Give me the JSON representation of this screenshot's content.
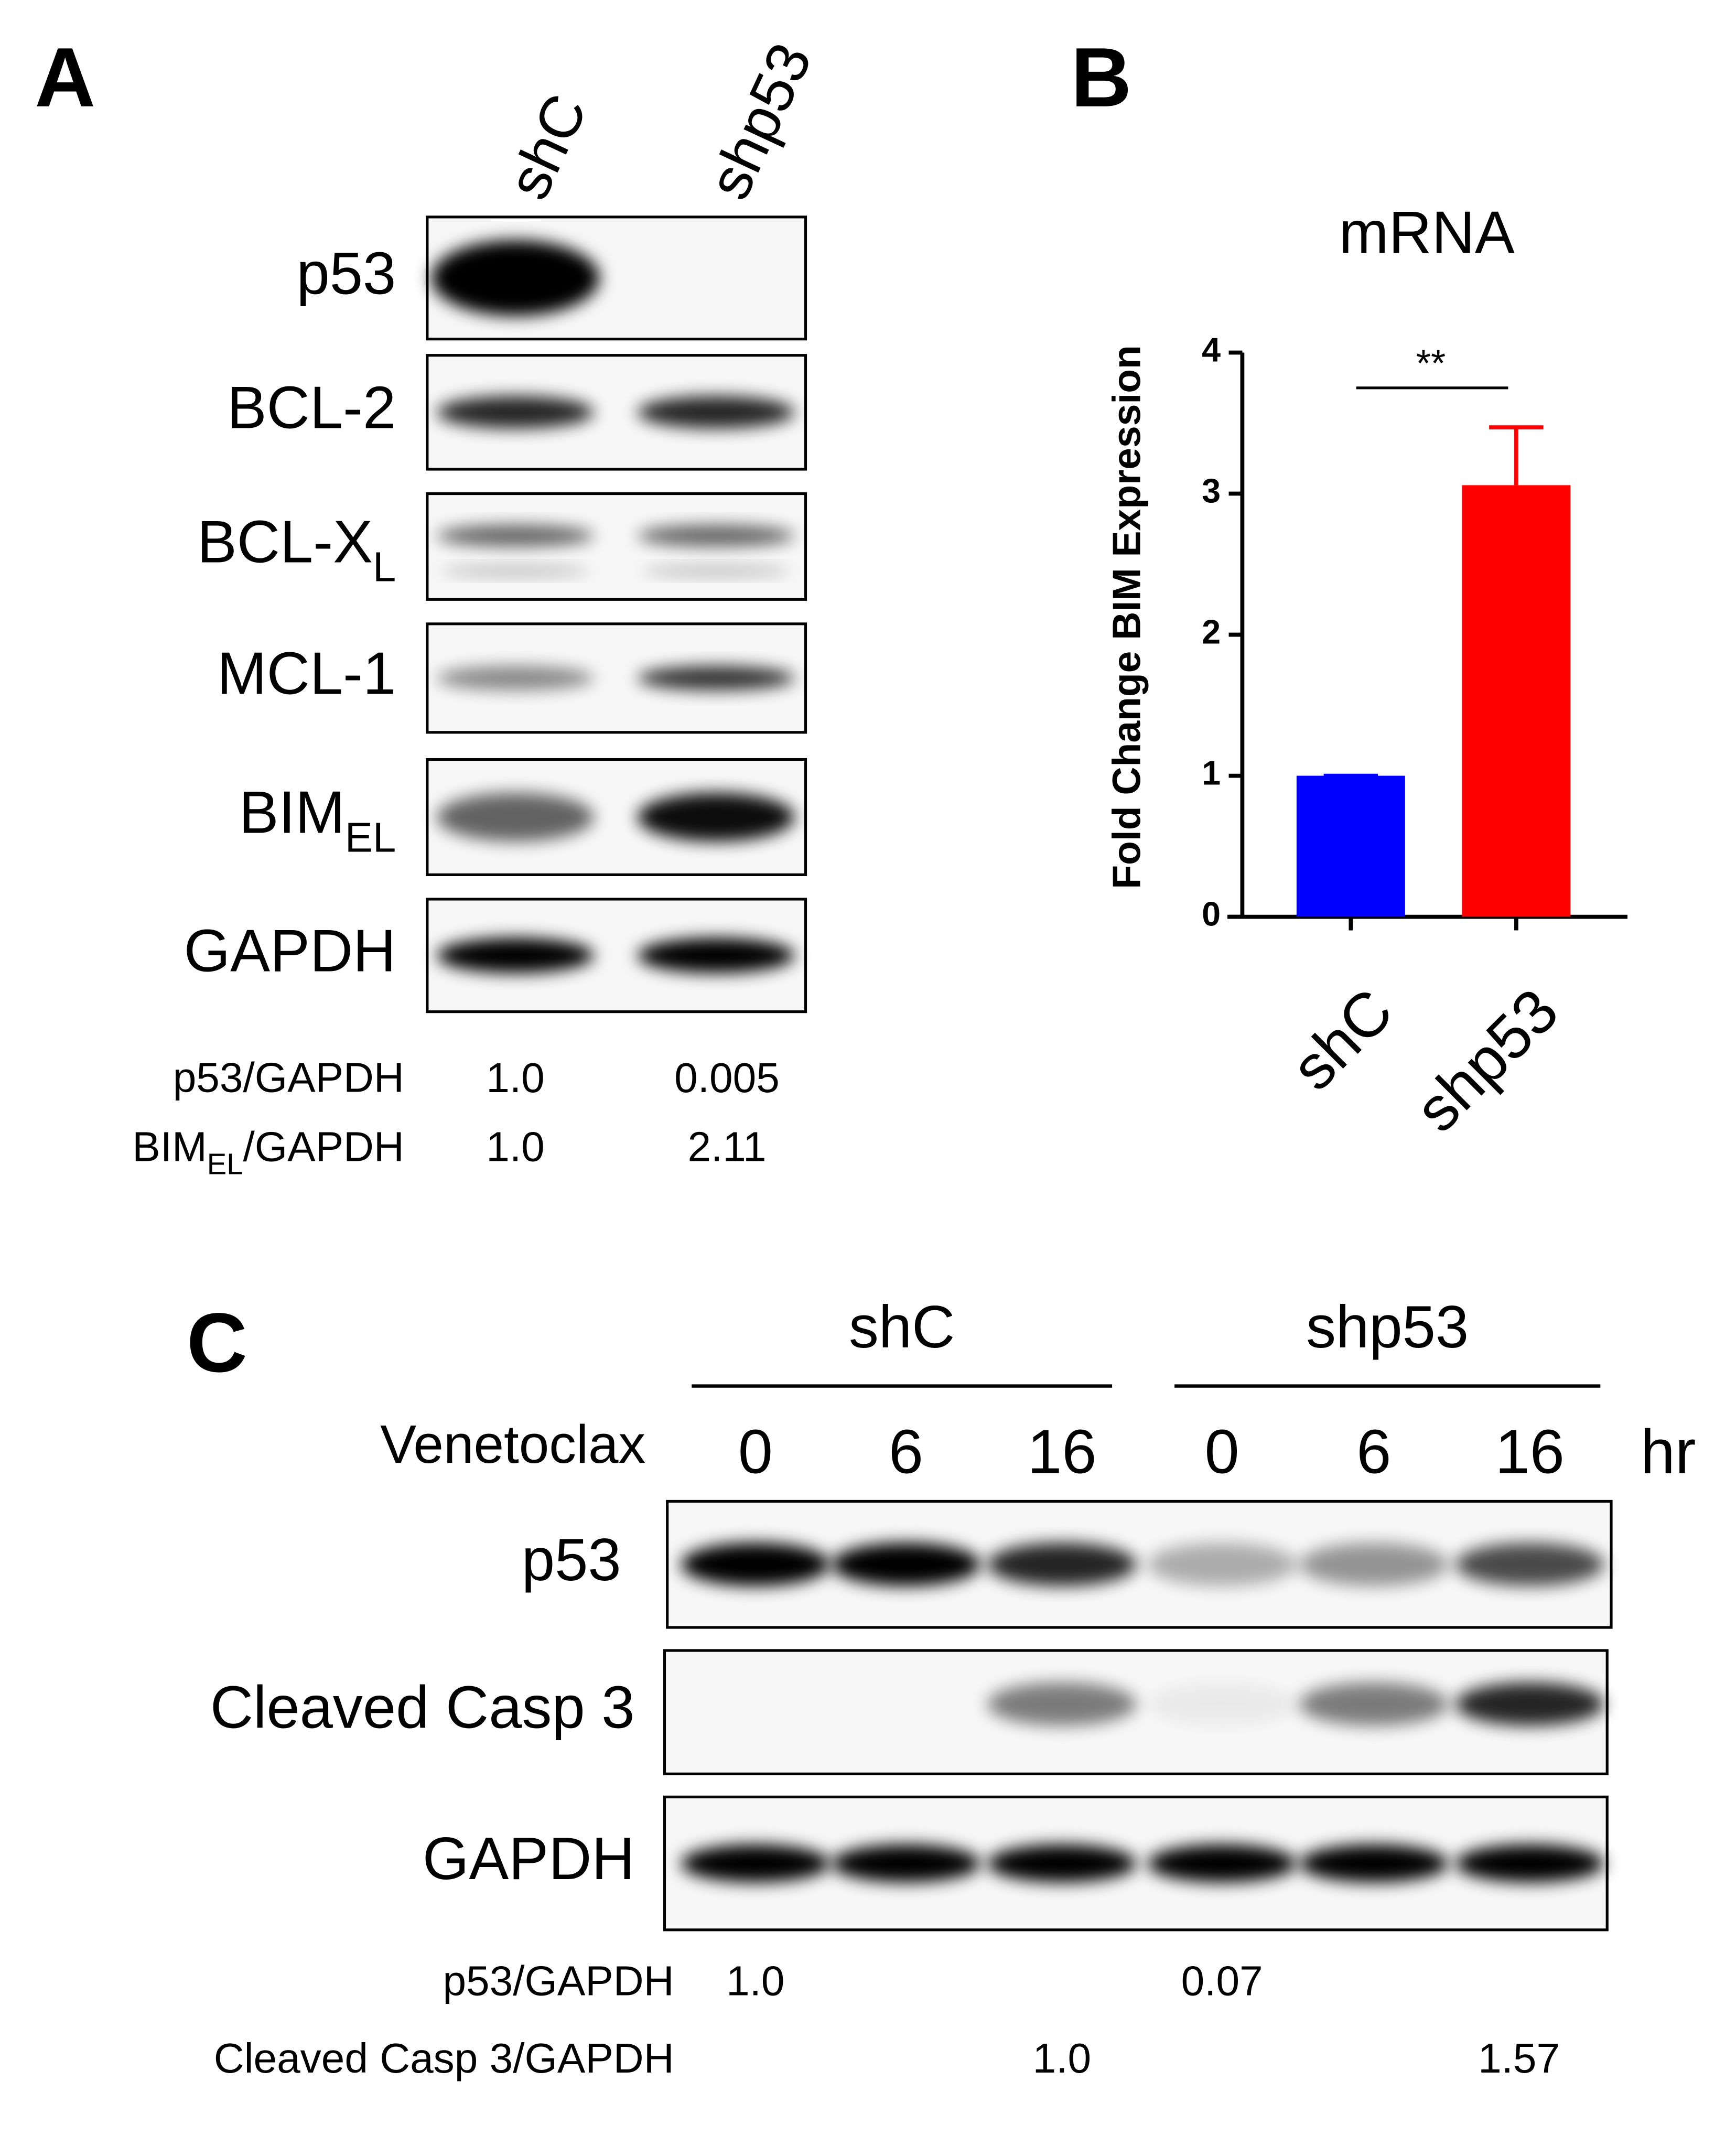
{
  "panel_a": {
    "label": "A",
    "lanes": [
      "shC",
      "shp53"
    ],
    "blots": [
      {
        "text": "p53"
      },
      {
        "text": "BCL-2"
      },
      {
        "text": "BCL-X",
        "sub": "L"
      },
      {
        "text": "MCL-1"
      },
      {
        "text": "BIM",
        "sub": "EL"
      },
      {
        "text": "GAPDH"
      }
    ],
    "quant": [
      {
        "text": "p53/GAPDH",
        "values": [
          "1.0",
          "0.005"
        ]
      },
      {
        "text": "BIM",
        "sub": "EL",
        "after": "/GAPDH",
        "values": [
          "1.0",
          "2.11"
        ]
      }
    ]
  },
  "chart_data": {
    "type": "bar",
    "panel_label": "B",
    "title": "mRNA",
    "y_label": "Fold Change BIM Expression",
    "categories": [
      "shC",
      "shp53"
    ],
    "values": [
      1,
      3.06
    ],
    "errors": [
      0,
      0.41
    ],
    "colors": [
      "#0000ff",
      "#ff0000"
    ],
    "ylim": [
      0,
      4
    ],
    "yticks": [
      0,
      1,
      2,
      3,
      4
    ],
    "annotation": "**"
  },
  "panel_c": {
    "label": "C",
    "groups": [
      "shC",
      "shp53"
    ],
    "treatment": "Venetoclax",
    "times": [
      "0",
      "6",
      "16",
      "0",
      "6",
      "16"
    ],
    "time_unit": "hr",
    "blots": [
      "p53",
      "Cleaved Casp 3",
      "GAPDH"
    ],
    "quant": [
      {
        "text": "p53/GAPDH",
        "values": [
          "1.0",
          null,
          null,
          "0.07",
          null,
          null
        ]
      },
      {
        "text": "Cleaved Casp 3/GAPDH",
        "values": [
          null,
          null,
          "1.0",
          null,
          null,
          "1.57"
        ]
      }
    ]
  }
}
